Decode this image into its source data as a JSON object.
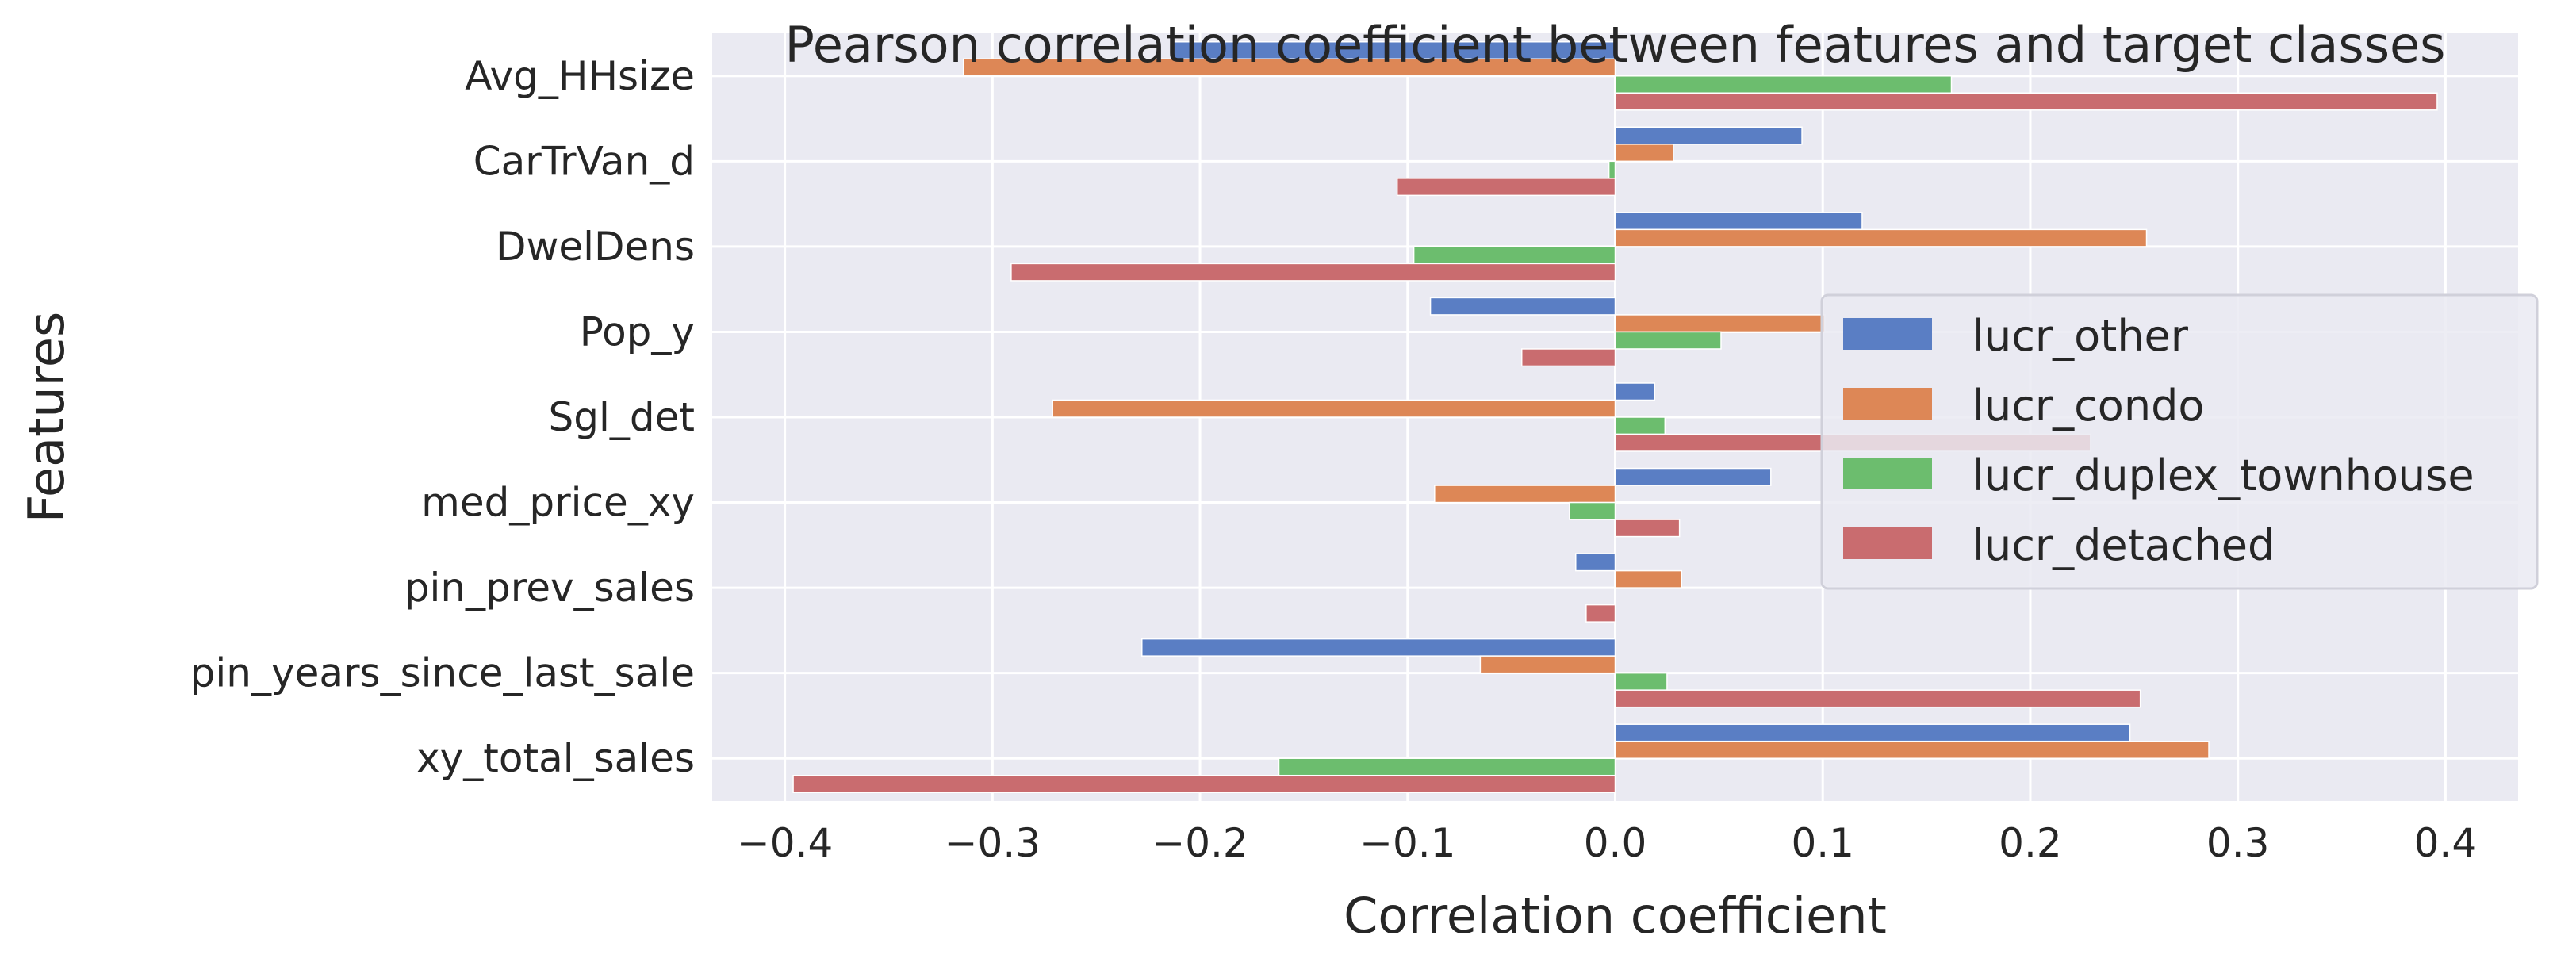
{
  "chart_data": {
    "type": "bar",
    "orientation": "horizontal",
    "title": "Pearson correlation coefficient between features and target classes",
    "xlabel": "Correlation coefficient",
    "ylabel": "Features",
    "categories": [
      "Avg_HHsize",
      "CarTrVan_d",
      "DwelDens",
      "Pop_y",
      "Sgl_det",
      "med_price_xy",
      "pin_prev_sales",
      "pin_years_since_last_sale",
      "xy_total_sales"
    ],
    "xlim": [
      -0.435,
      0.435
    ],
    "xticks": [
      -0.4,
      -0.3,
      -0.2,
      -0.1,
      0.0,
      0.1,
      0.2,
      0.3,
      0.4
    ],
    "xtick_labels": [
      "−0.4",
      "−0.3",
      "−0.2",
      "−0.1",
      "0.0",
      "0.1",
      "0.2",
      "0.3",
      "0.4"
    ],
    "grid": true,
    "legend_position": "center-right",
    "background": "#eaeaf2",
    "series": [
      {
        "name": "lucr_other",
        "color": "#5a7ec4",
        "values": [
          -0.213,
          0.09,
          0.119,
          -0.089,
          0.019,
          0.075,
          -0.019,
          -0.228,
          0.248
        ]
      },
      {
        "name": "lucr_condo",
        "color": "#dd8756",
        "values": [
          -0.314,
          0.028,
          0.256,
          0.101,
          -0.271,
          -0.087,
          0.032,
          -0.065,
          0.286
        ]
      },
      {
        "name": "lucr_duplex_townhouse",
        "color": "#6cbd6e",
        "values": [
          0.162,
          -0.003,
          -0.097,
          0.051,
          0.024,
          -0.022,
          0.0,
          0.025,
          -0.162
        ]
      },
      {
        "name": "lucr_detached",
        "color": "#c96c6f",
        "values": [
          0.396,
          -0.105,
          -0.291,
          -0.045,
          0.229,
          0.031,
          -0.014,
          0.253,
          -0.396
        ]
      }
    ]
  }
}
